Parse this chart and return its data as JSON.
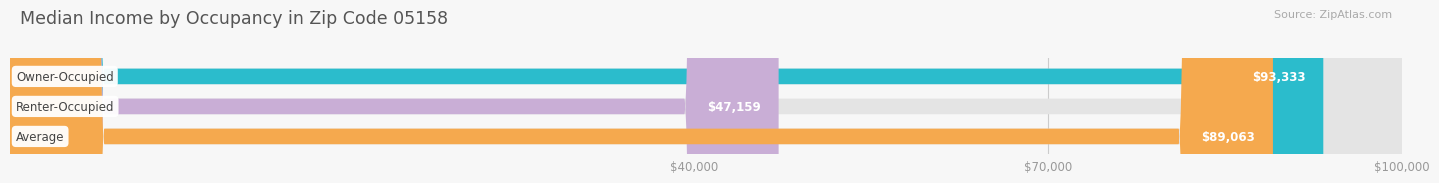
{
  "title": "Median Income by Occupancy in Zip Code 05158",
  "source": "Source: ZipAtlas.com",
  "categories": [
    "Owner-Occupied",
    "Renter-Occupied",
    "Average"
  ],
  "values": [
    93333,
    47159,
    89063
  ],
  "bar_colors": [
    "#2bbccc",
    "#c9aed6",
    "#f5a94e"
  ],
  "bar_labels": [
    "$93,333",
    "$47,159",
    "$89,063"
  ],
  "xmin": -18000,
  "xmax": 100000,
  "xticks": [
    40000,
    70000,
    100000
  ],
  "xtick_labels": [
    "$40,000",
    "$70,000",
    "$100,000"
  ],
  "background_color": "#f7f7f7",
  "bar_bg_color": "#e4e4e4",
  "title_fontsize": 12.5,
  "source_fontsize": 8,
  "label_fontsize": 8.5,
  "value_fontsize": 8.5,
  "bar_height": 0.52
}
